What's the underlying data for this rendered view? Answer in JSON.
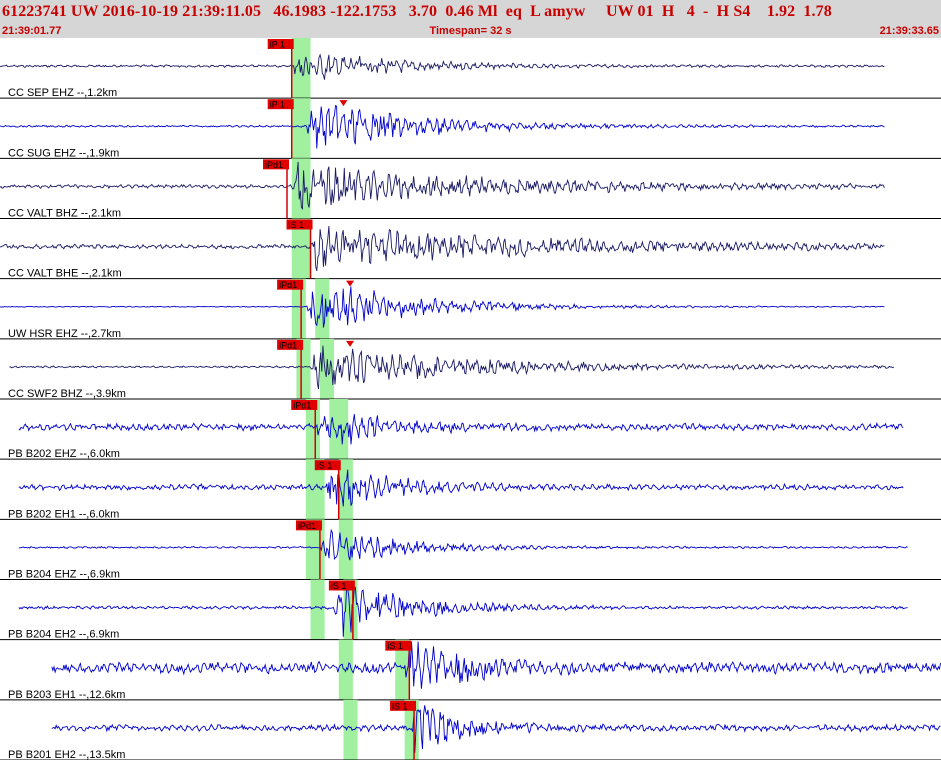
{
  "header": {
    "event_line": "61223741 UW 2016-10-19 21:39:11.05   46.1983 -122.1753   3.70  0.46 Ml  eq  L amyw     UW 01  H   4  -  H S4    1.92  1.78",
    "start_time": "21:39:01.77",
    "timespan_label": "Timespan=  32 s",
    "end_time": "21:39:33.65"
  },
  "colors": {
    "header_text": "#c80000",
    "trace_blue": "#0000cc",
    "trace_dark": "#1a1a66",
    "pick_line": "#d20000",
    "pick_label_bg": "#e00000",
    "shade": "#a0f0a0"
  },
  "channels": [
    {
      "label": "CC SEP EHZ --,1.2km",
      "start": 0.0,
      "end": 0.94,
      "color": "dark",
      "noise": 0.15,
      "amp": 0.55,
      "onset": 0.31,
      "duration": 0.16,
      "picks": [
        {
          "text": "iP 1",
          "pos": 0.31
        }
      ],
      "shades": [
        0.31,
        0.33
      ],
      "marker": null
    },
    {
      "label": "CC SUG EHZ --,1.9km",
      "start": 0.0,
      "end": 0.94,
      "color": "blue",
      "noise": 0.12,
      "amp": 0.85,
      "onset": 0.325,
      "duration": 0.18,
      "picks": [
        {
          "text": "iP 1",
          "pos": 0.31
        }
      ],
      "shades": [
        0.31,
        0.33
      ],
      "marker": 0.365
    },
    {
      "label": "CC VALT BHZ --,2.1km",
      "start": 0.0,
      "end": 0.94,
      "color": "dark",
      "noise": 0.22,
      "amp": 0.75,
      "onset": 0.31,
      "duration": 0.3,
      "picks": [
        {
          "text": "iPd1",
          "pos": 0.305
        }
      ],
      "shades": [
        0.31,
        0.33
      ],
      "marker": null
    },
    {
      "label": "CC VALT BHE --,2.1km",
      "start": 0.0,
      "end": 0.94,
      "color": "dark",
      "noise": 0.28,
      "amp": 0.7,
      "onset": 0.33,
      "duration": 0.33,
      "picks": [
        {
          "text": "iS 1",
          "pos": 0.33
        }
      ],
      "shades": [
        0.31,
        0.33
      ],
      "marker": null
    },
    {
      "label": "UW HSR EHZ --,2.7km",
      "start": 0.0,
      "end": 0.94,
      "color": "blue",
      "noise": 0.06,
      "amp": 0.95,
      "onset": 0.325,
      "duration": 0.17,
      "picks": [
        {
          "text": "iPd1",
          "pos": 0.32
        }
      ],
      "shades": [
        0.31,
        0.325,
        0.335,
        0.35
      ],
      "marker": 0.372
    },
    {
      "label": "CC SWF2 BHZ --,3.9km",
      "start": 0.01,
      "end": 0.95,
      "color": "dark",
      "noise": 0.12,
      "amp": 0.75,
      "onset": 0.33,
      "duration": 0.26,
      "picks": [
        {
          "text": "iPd1",
          "pos": 0.32
        }
      ],
      "shades": [
        0.315,
        0.33,
        0.34,
        0.355
      ],
      "marker": 0.372
    },
    {
      "label": "PB B202 EHZ --,6.0km",
      "start": 0.02,
      "end": 0.96,
      "color": "blue",
      "noise": 0.42,
      "amp": 0.75,
      "onset": 0.335,
      "duration": 0.1,
      "picks": [
        {
          "text": "iPd1",
          "pos": 0.335
        }
      ],
      "shades": [
        0.325,
        0.34,
        0.35,
        0.37
      ],
      "marker": null
    },
    {
      "label": "PB B202 EH1 --,6.0km",
      "start": 0.02,
      "end": 0.96,
      "color": "blue",
      "noise": 0.35,
      "amp": 0.85,
      "onset": 0.345,
      "duration": 0.1,
      "picks": [
        {
          "text": "iS 1",
          "pos": 0.36
        }
      ],
      "shades": [
        0.325,
        0.345,
        0.36,
        0.375
      ],
      "marker": null
    },
    {
      "label": "PB B204 EHZ --,6.9km",
      "start": 0.02,
      "end": 0.965,
      "color": "blue",
      "noise": 0.12,
      "amp": 0.65,
      "onset": 0.34,
      "duration": 0.13,
      "picks": [
        {
          "text": "iPd1",
          "pos": 0.34
        }
      ],
      "shades": [
        0.325,
        0.345,
        0.36,
        0.375
      ],
      "marker": null
    },
    {
      "label": "PB B204 EH2 --,6.9km",
      "start": 0.02,
      "end": 0.965,
      "color": "blue",
      "noise": 0.2,
      "amp": 0.9,
      "onset": 0.355,
      "duration": 0.12,
      "picks": [
        {
          "text": "iS 1",
          "pos": 0.375
        }
      ],
      "shades": [
        0.33,
        0.345,
        0.365,
        0.38
      ],
      "marker": null
    },
    {
      "label": "PB B203 EH1 --,12.6km",
      "start": 0.055,
      "end": 1.0,
      "color": "blue",
      "noise": 0.65,
      "amp": 1.0,
      "onset": 0.43,
      "duration": 0.08,
      "picks": [
        {
          "text": "iS 1",
          "pos": 0.435
        }
      ],
      "shades": [
        0.36,
        0.375,
        0.42,
        0.435
      ],
      "marker": null
    },
    {
      "label": "PB B201 EH2 --,13.5km",
      "start": 0.055,
      "end": 1.0,
      "color": "blue",
      "noise": 0.4,
      "amp": 0.95,
      "onset": 0.435,
      "duration": 0.08,
      "picks": [
        {
          "text": "iS 1",
          "pos": 0.44
        }
      ],
      "shades": [
        0.365,
        0.38,
        0.43,
        0.445
      ],
      "marker": null
    }
  ]
}
